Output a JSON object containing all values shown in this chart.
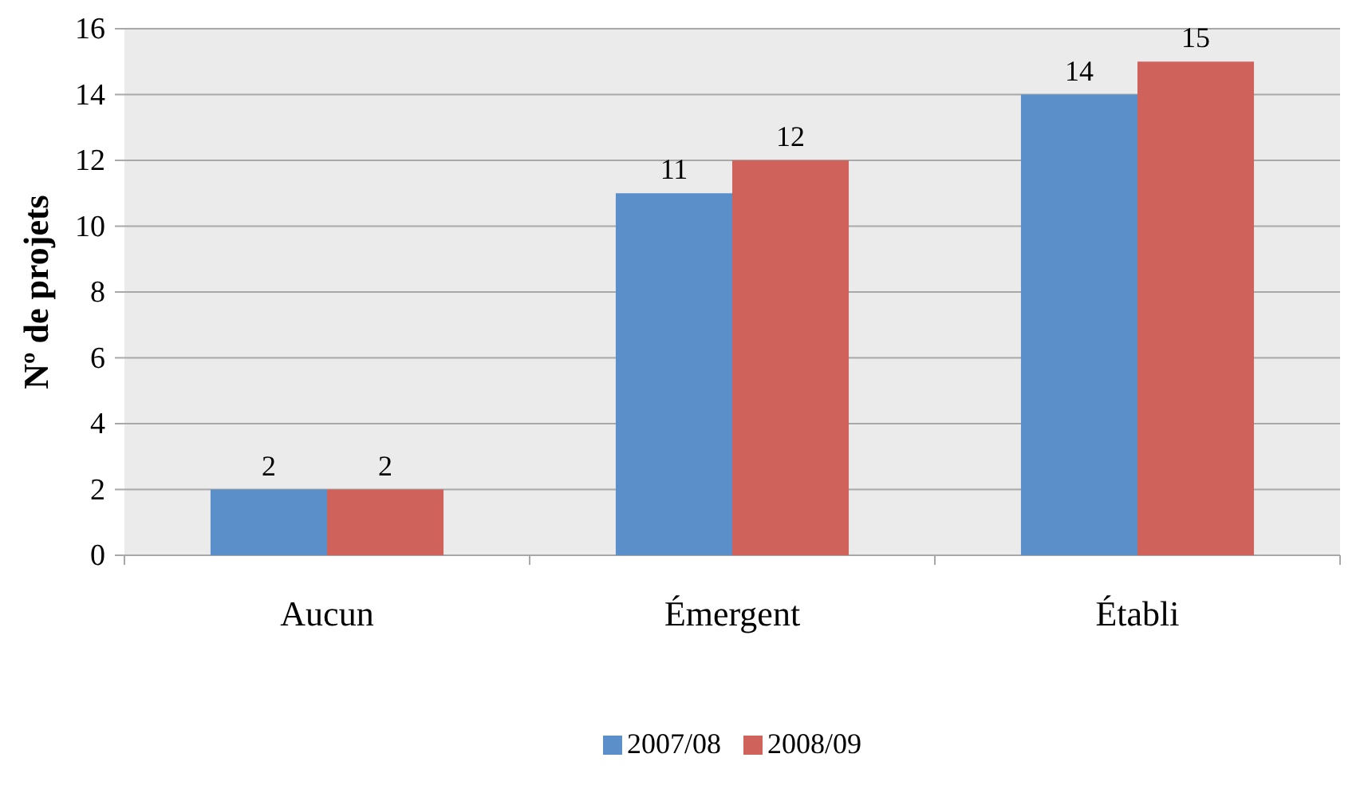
{
  "chart_data": {
    "type": "bar",
    "ylabel": "Nº de projets",
    "categories": [
      "Aucun",
      "Émergent",
      "Établi"
    ],
    "series": [
      {
        "name": "2007/08",
        "color": "#5b8fc9",
        "values": [
          2,
          11,
          14
        ]
      },
      {
        "name": "2008/09",
        "color": "#d0625c",
        "values": [
          2,
          12,
          15
        ]
      }
    ],
    "ylim": [
      0,
      16
    ],
    "yticks": [
      0,
      2,
      4,
      6,
      8,
      10,
      12,
      14,
      16
    ],
    "grid": "y",
    "legend": "bottom",
    "data_labels": true
  }
}
